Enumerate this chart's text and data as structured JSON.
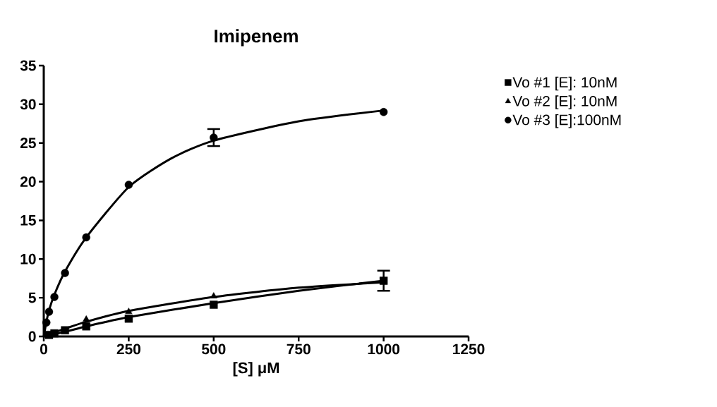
{
  "chart_data": {
    "type": "scatter",
    "title": "Imipenem",
    "xlabel": "[S] μM",
    "xlim": [
      0,
      1250
    ],
    "ylim": [
      0,
      35
    ],
    "xticks": [
      0,
      250,
      500,
      750,
      1000,
      1250
    ],
    "yticks": [
      0,
      5,
      10,
      15,
      20,
      25,
      30,
      35
    ],
    "grid": false,
    "legend": "top right",
    "series": [
      {
        "name": "Vo #1 [E]: 10nM",
        "marker": "square",
        "color": "#000000",
        "x": [
          15.6,
          31.25,
          62.5,
          125,
          250,
          500,
          1000
        ],
        "values": [
          0.2,
          0.4,
          0.8,
          1.3,
          2.3,
          4.1,
          7.2
        ],
        "errors": [
          null,
          null,
          null,
          null,
          null,
          null,
          1.3
        ]
      },
      {
        "name": "Vo #2 [E]: 10nM",
        "marker": "triangle",
        "color": "#000000",
        "x": [
          125,
          250,
          500,
          1000
        ],
        "values": [
          2.2,
          3.2,
          5.2,
          7.0
        ]
      },
      {
        "name": "Vo #3 [E]:100nM",
        "marker": "circle",
        "color": "#000000",
        "x": [
          7.8,
          15.6,
          31.25,
          62.5,
          125,
          250,
          500,
          1000
        ],
        "values": [
          1.8,
          3.2,
          5.1,
          8.2,
          12.8,
          19.6,
          25.7,
          29.0
        ],
        "errors": [
          null,
          null,
          null,
          null,
          null,
          null,
          1.1,
          null
        ]
      },
      {
        "type": "line",
        "marker": "none",
        "color": "#000000",
        "x": [
          0,
          62.5,
          125,
          250,
          500,
          750,
          1000
        ],
        "values": [
          0,
          0.6,
          1.3,
          2.5,
          4.3,
          5.9,
          7.2
        ]
      },
      {
        "type": "line",
        "marker": "none",
        "color": "#000000",
        "x": [
          10,
          62.5,
          125,
          250,
          500,
          750,
          1000
        ],
        "values": [
          0.2,
          1.0,
          1.9,
          3.3,
          5.1,
          6.3,
          7.0
        ]
      },
      {
        "type": "line",
        "marker": "none",
        "color": "#000000",
        "x": [
          0,
          7.8,
          15.6,
          31.25,
          62.5,
          125,
          250,
          375,
          500,
          750,
          1000
        ],
        "values": [
          0,
          1.9,
          3.4,
          5.4,
          8.4,
          12.8,
          19.3,
          23.0,
          25.3,
          27.8,
          29.2
        ]
      }
    ]
  }
}
